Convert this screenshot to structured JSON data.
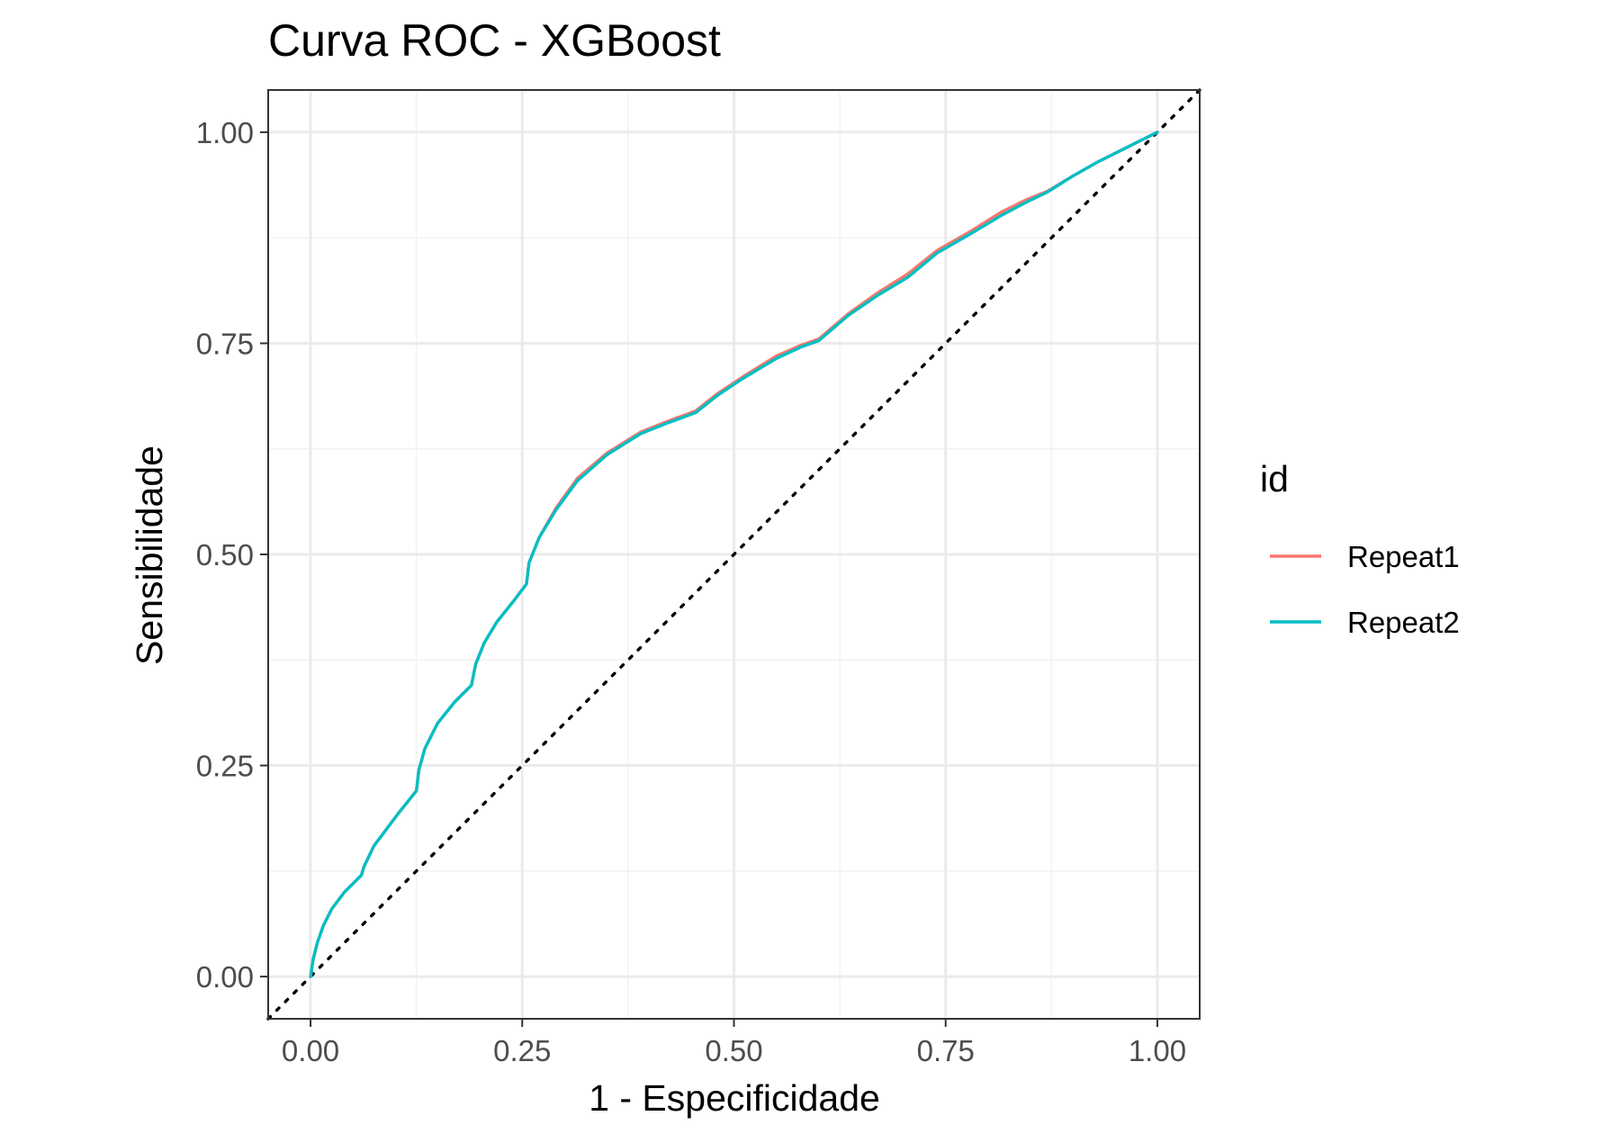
{
  "chart_data": {
    "type": "line",
    "title": "Curva ROC - XGBoost",
    "xlabel": "1 - Especificidade",
    "ylabel": "Sensibilidade",
    "xlim": [
      -0.05,
      1.05
    ],
    "ylim": [
      -0.05,
      1.05
    ],
    "x_ticks": [
      0,
      0.25,
      0.5,
      0.75,
      1
    ],
    "y_ticks": [
      0,
      0.25,
      0.5,
      0.75,
      1
    ],
    "x_tick_labels": [
      "0.00",
      "0.25",
      "0.50",
      "0.75",
      "1.00"
    ],
    "y_tick_labels": [
      "0.00",
      "0.25",
      "0.50",
      "0.75",
      "1.00"
    ],
    "grid": true,
    "legend": {
      "title": "id",
      "position": "right"
    },
    "reference_line": {
      "style": "dotted",
      "color": "#000000",
      "points": [
        [
          -0.05,
          -0.05
        ],
        [
          1.05,
          1.05
        ]
      ]
    },
    "series": [
      {
        "name": "Repeat1",
        "color": "#F8766D",
        "x": [
          0,
          0.003,
          0.008,
          0.015,
          0.025,
          0.04,
          0.06,
          0.063,
          0.075,
          0.09,
          0.105,
          0.125,
          0.128,
          0.135,
          0.15,
          0.17,
          0.19,
          0.195,
          0.205,
          0.22,
          0.24,
          0.255,
          0.258,
          0.27,
          0.29,
          0.315,
          0.35,
          0.39,
          0.42,
          0.455,
          0.48,
          0.51,
          0.55,
          0.58,
          0.6,
          0.635,
          0.67,
          0.705,
          0.74,
          0.78,
          0.815,
          0.845,
          0.87,
          0.9,
          0.93,
          0.96,
          0.98,
          1
        ],
        "y": [
          0,
          0.02,
          0.04,
          0.06,
          0.08,
          0.1,
          0.12,
          0.13,
          0.155,
          0.175,
          0.195,
          0.22,
          0.245,
          0.27,
          0.3,
          0.325,
          0.345,
          0.37,
          0.395,
          0.42,
          0.445,
          0.465,
          0.49,
          0.52,
          0.555,
          0.59,
          0.62,
          0.645,
          0.657,
          0.67,
          0.69,
          0.71,
          0.735,
          0.748,
          0.755,
          0.785,
          0.81,
          0.832,
          0.86,
          0.883,
          0.905,
          0.92,
          0.93,
          0.948,
          0.965,
          0.98,
          0.99,
          1
        ]
      },
      {
        "name": "Repeat2",
        "color": "#00BFC4",
        "x": [
          0,
          0.003,
          0.008,
          0.015,
          0.025,
          0.04,
          0.06,
          0.063,
          0.075,
          0.09,
          0.105,
          0.125,
          0.128,
          0.135,
          0.15,
          0.17,
          0.19,
          0.195,
          0.205,
          0.22,
          0.24,
          0.255,
          0.258,
          0.27,
          0.29,
          0.315,
          0.35,
          0.39,
          0.42,
          0.455,
          0.48,
          0.51,
          0.55,
          0.58,
          0.6,
          0.635,
          0.67,
          0.705,
          0.74,
          0.78,
          0.815,
          0.845,
          0.87,
          0.9,
          0.93,
          0.96,
          0.98,
          1
        ],
        "y": [
          0,
          0.02,
          0.04,
          0.06,
          0.08,
          0.1,
          0.12,
          0.13,
          0.155,
          0.175,
          0.195,
          0.22,
          0.245,
          0.27,
          0.3,
          0.325,
          0.345,
          0.37,
          0.395,
          0.42,
          0.445,
          0.465,
          0.49,
          0.52,
          0.553,
          0.587,
          0.618,
          0.643,
          0.655,
          0.668,
          0.688,
          0.708,
          0.732,
          0.746,
          0.753,
          0.783,
          0.807,
          0.828,
          0.857,
          0.88,
          0.901,
          0.917,
          0.929,
          0.948,
          0.965,
          0.98,
          0.99,
          1
        ]
      }
    ]
  }
}
